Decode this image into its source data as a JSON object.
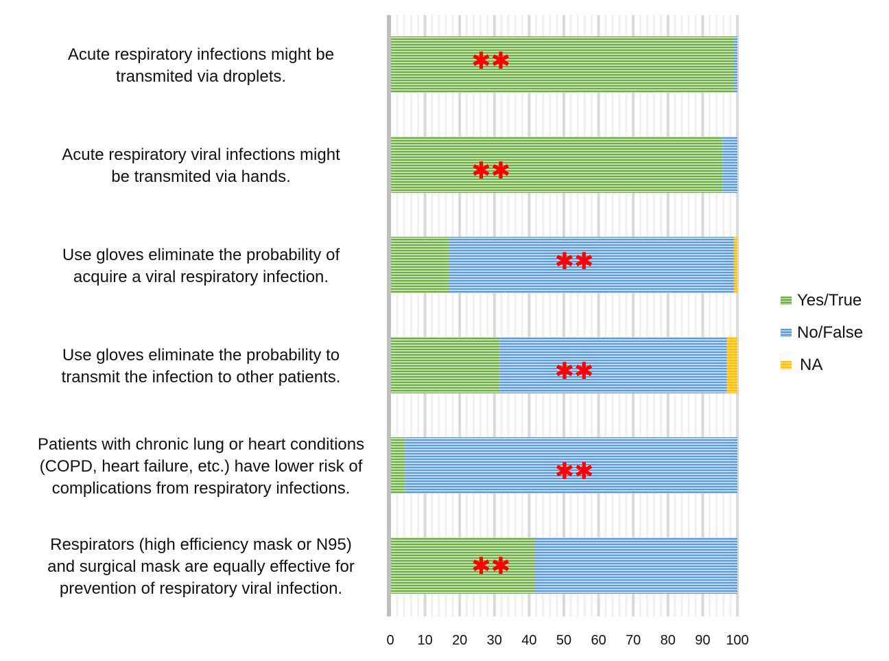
{
  "chart_data": {
    "type": "bar",
    "orientation": "horizontal",
    "stacked": true,
    "title": "",
    "xlabel": "",
    "ylabel": "",
    "xlim": [
      0,
      100
    ],
    "x_ticks": [
      "0",
      "10",
      "20",
      "30",
      "40",
      "50",
      "60",
      "70",
      "80",
      "90",
      "100"
    ],
    "grid": true,
    "legend_position": "right",
    "categories": [
      "Acute respiratory infections might be transmited via droplets.",
      "Acute respiratory viral infections might be transmited via hands.",
      "Use gloves eliminate the probability of acquire a viral respiratory infection.",
      "Use gloves eliminate the probability to transmit the infection to other patients.",
      "Patients with chronic lung or heart conditions (COPD, heart failure, etc.) have lower risk of complications from respiratory infections.",
      "Respirators (high efficiency mask or N95) and surgical mask are equally effective for prevention of respiratory viral infection."
    ],
    "category_lines": [
      [
        "Acute respiratory infections might be",
        "transmited via droplets."
      ],
      [
        "Acute respiratory viral infections might",
        "be transmited via hands."
      ],
      [
        "Use gloves eliminate the probability of",
        "acquire a viral respiratory infection."
      ],
      [
        "Use gloves eliminate the probability to",
        "transmit the infection to other patients."
      ],
      [
        "Patients with chronic lung or heart conditions",
        "(COPD, heart failure, etc.) have lower risk of",
        "complications from respiratory infections."
      ],
      [
        "Respirators (high efficiency mask or N95)",
        "and surgical mask are equally effective for",
        "prevention of respiratory viral infection."
      ]
    ],
    "series": [
      {
        "name": "Yes/True",
        "color": "#70ad47",
        "values": [
          99,
          95.7,
          17,
          31.5,
          4.3,
          41.6
        ]
      },
      {
        "name": "No/False",
        "color": "#5b9bd5",
        "values": [
          1,
          4.3,
          82,
          65.5,
          95.7,
          58.4
        ]
      },
      {
        "name": "NA",
        "color": "#ffc000",
        "values": [
          0,
          0,
          1,
          3,
          0,
          0
        ]
      }
    ],
    "annotations": [
      {
        "category_index": 0,
        "text": "**",
        "x": 29
      },
      {
        "category_index": 1,
        "text": "**",
        "x": 29
      },
      {
        "category_index": 2,
        "text": "**",
        "x": 53
      },
      {
        "category_index": 3,
        "text": "**",
        "x": 53
      },
      {
        "category_index": 4,
        "text": "**",
        "x": 53
      },
      {
        "category_index": 5,
        "text": "**",
        "x": 29
      }
    ]
  },
  "legend": {
    "items": [
      {
        "label": "Yes/True",
        "color": "#70ad47"
      },
      {
        "label": "No/False",
        "color": "#5b9bd5"
      },
      {
        "label": "NA",
        "color": "#ffc000"
      }
    ]
  }
}
